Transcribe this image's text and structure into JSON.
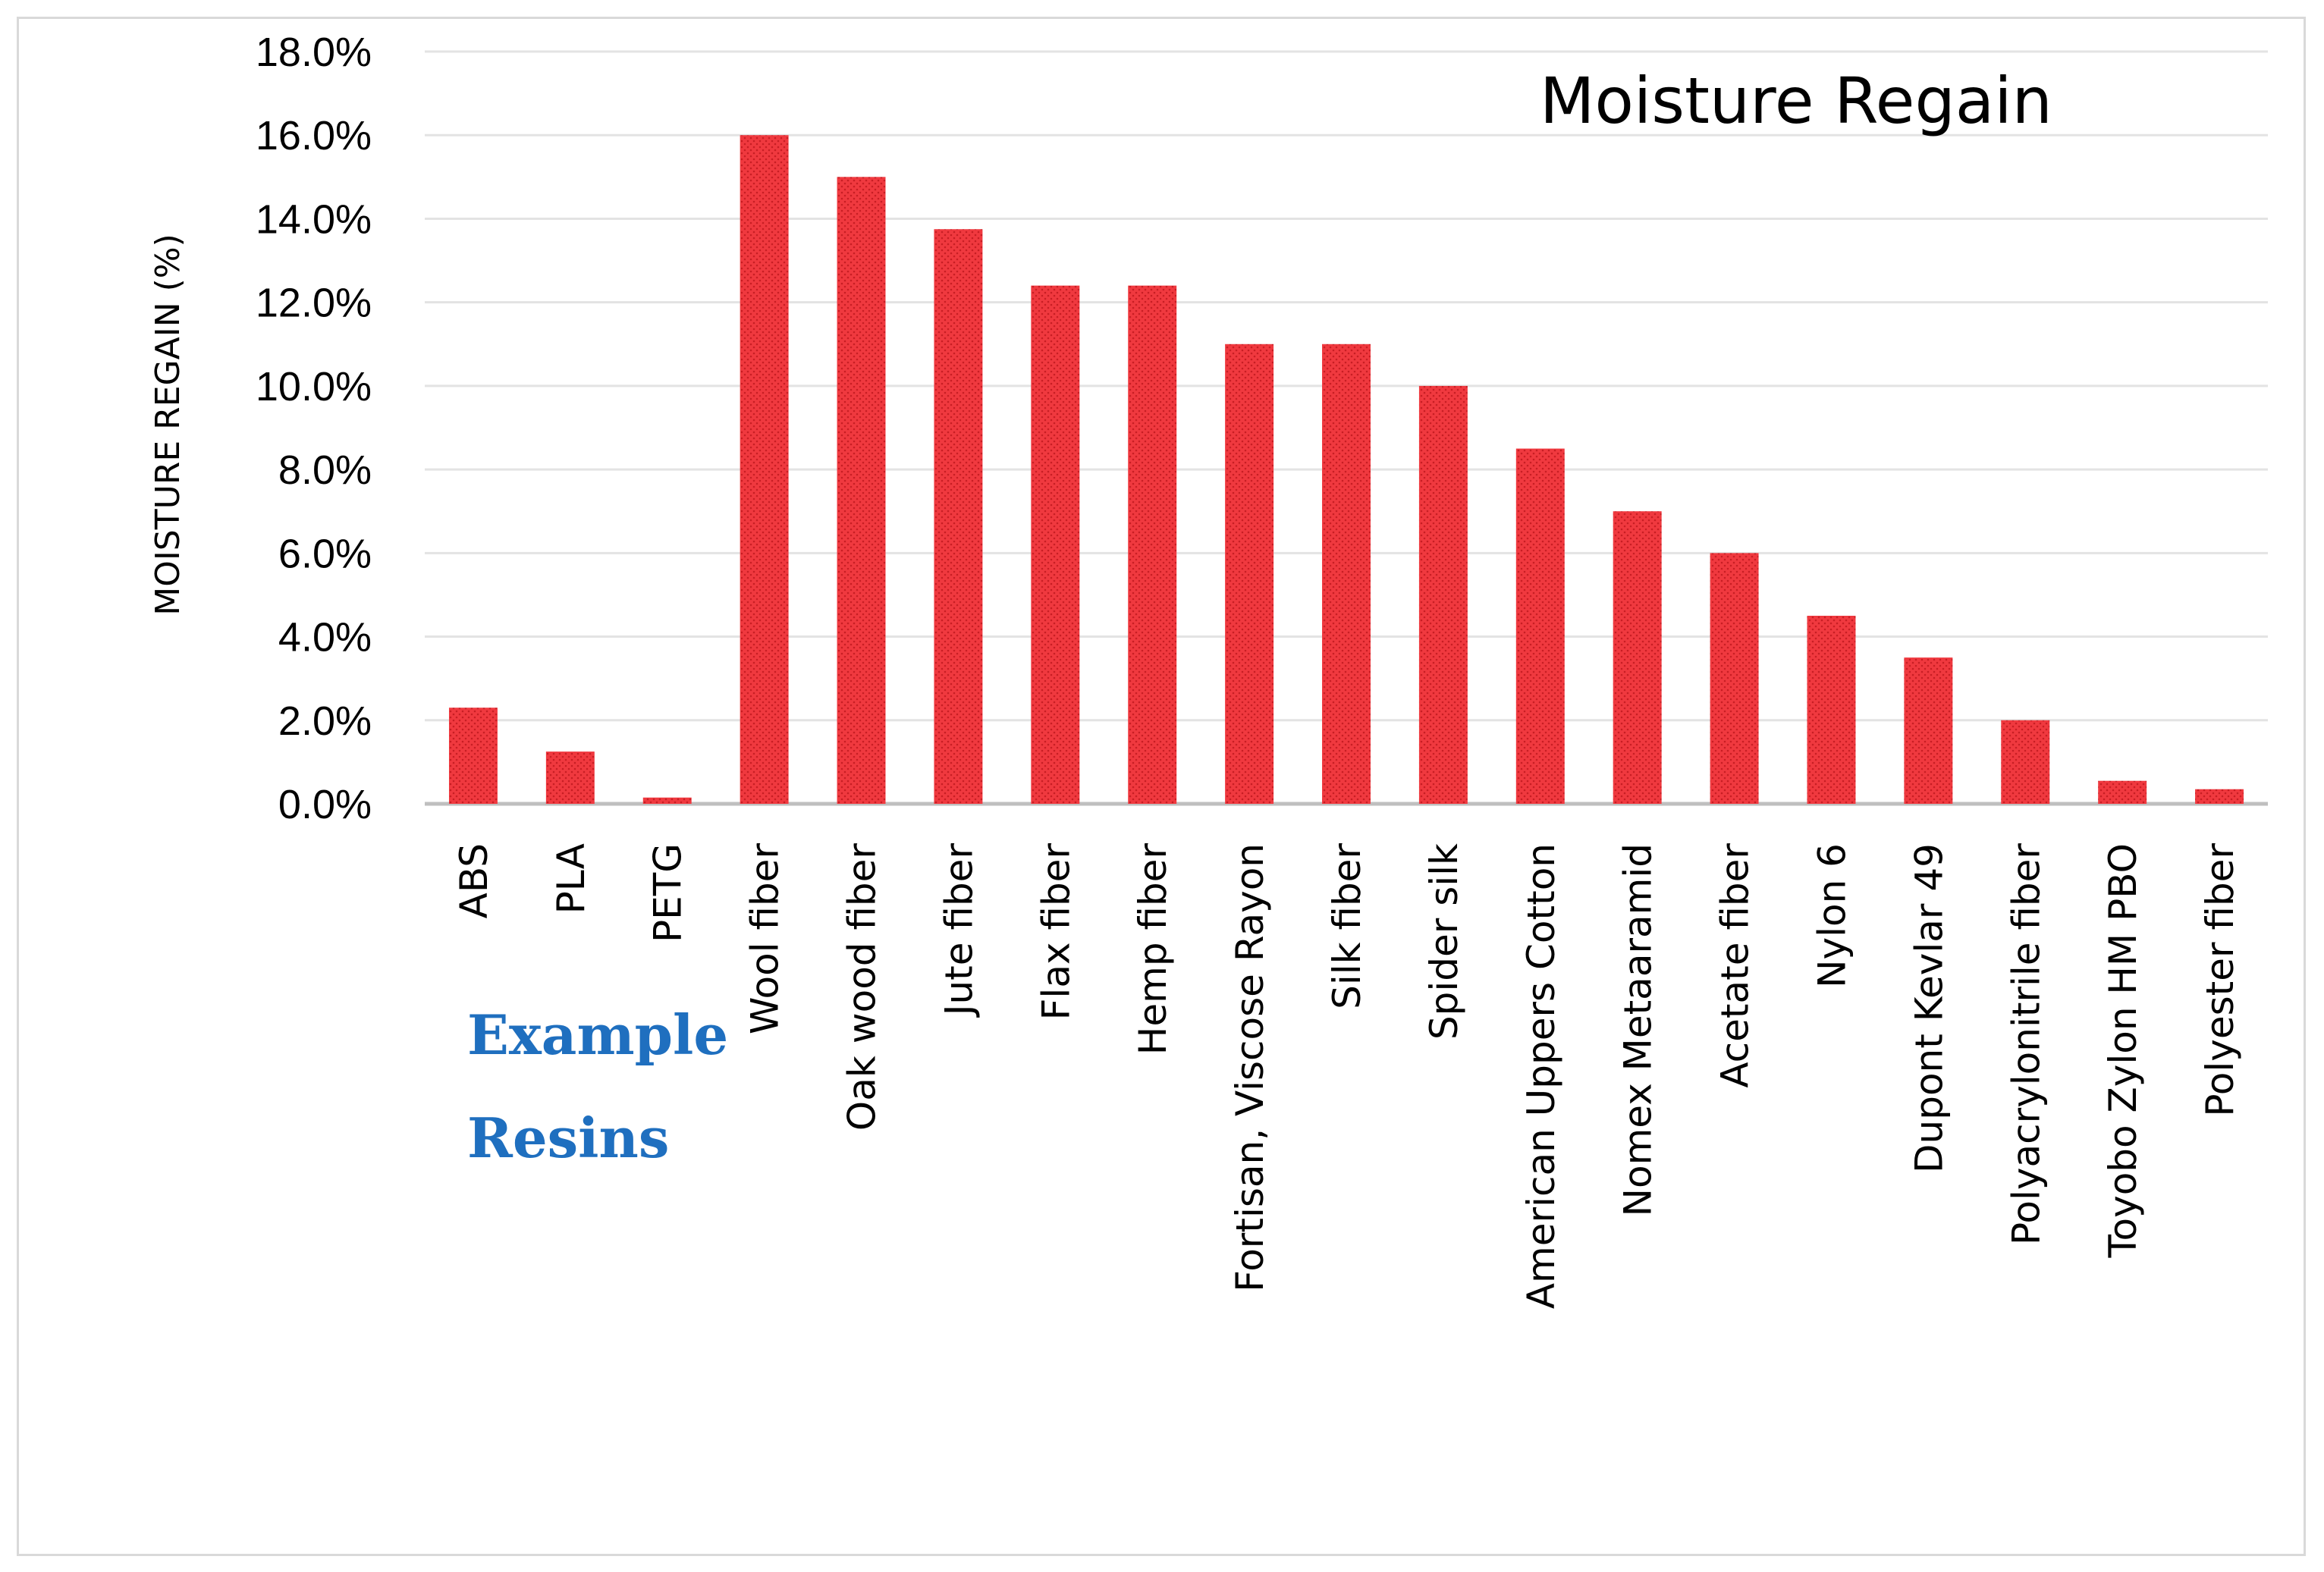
{
  "chart_data": {
    "type": "bar",
    "title": "Moisture Regain",
    "ylabel": "MOISTURE REGAIN (%)",
    "xlabel": "",
    "ylim": [
      0,
      18
    ],
    "yticks": [
      "0.0%",
      "2.0%",
      "4.0%",
      "6.0%",
      "8.0%",
      "10.0%",
      "12.0%",
      "14.0%",
      "16.0%",
      "18.0%"
    ],
    "grid": true,
    "categories": [
      "ABS",
      "PLA",
      "PETG",
      "Wool fiber",
      "Oak wood fiber",
      "Jute fiber",
      "Flax fiber",
      "Hemp fiber",
      "Fortisan, Viscose Rayon",
      "Silk fiber",
      "Spider silk",
      "American Uppers Cotton",
      "Nomex Metaaramid",
      "Acetate fiber",
      "Nylon 6",
      "Dupont Kevlar 49",
      "Polyacrylonitrile fiber",
      "Toyobo Zylon HM PBO",
      "Polyester fiber"
    ],
    "values": [
      2.3,
      1.25,
      0.15,
      16.0,
      15.0,
      13.75,
      12.4,
      12.4,
      11.0,
      11.0,
      10.0,
      8.5,
      7.0,
      6.0,
      4.5,
      3.5,
      2.0,
      0.55,
      0.35
    ],
    "annotation": [
      "Example",
      "Resins"
    ],
    "colors": {
      "bar": "#f0393f",
      "bar_dot": "#c81e24",
      "grid": "#e3e3e3",
      "axis": "#bfbfbf",
      "annotation": "#1f6fbf"
    }
  }
}
